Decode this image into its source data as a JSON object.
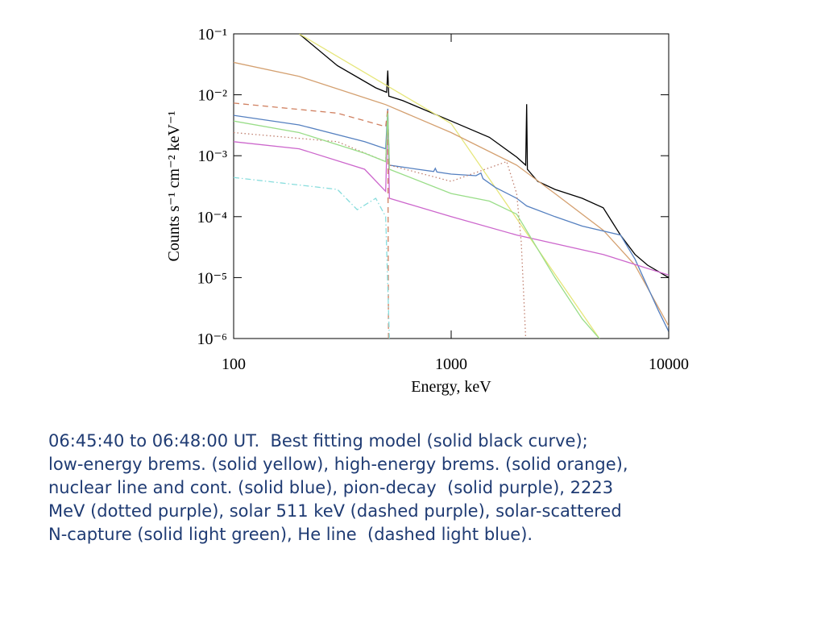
{
  "chart_data": {
    "type": "line",
    "log_x": true,
    "log_y": true,
    "xlabel": "Energy, keV",
    "ylabel": "Counts s⁻¹ cm⁻² keV⁻¹",
    "xlim": [
      100,
      10000
    ],
    "ylim": [
      1e-06,
      0.1
    ],
    "xticks": [
      100,
      1000,
      10000
    ],
    "yticks": [
      {
        "value": 1e-06,
        "label": "10⁻⁶"
      },
      {
        "value": 1e-05,
        "label": "10⁻⁵"
      },
      {
        "value": 0.0001,
        "label": "10⁻⁴"
      },
      {
        "value": 0.001,
        "label": "10⁻³"
      },
      {
        "value": 0.01,
        "label": "10⁻²"
      },
      {
        "value": 0.1,
        "label": "10⁻¹"
      }
    ],
    "series": [
      {
        "name": "Best fitting model",
        "color": "#000000",
        "style": "solid",
        "x": [
          200,
          300,
          450,
          505,
          511,
          517,
          600,
          1000,
          1500,
          2000,
          2200,
          2223,
          2240,
          2500,
          3000,
          4000,
          5000,
          6000,
          7000,
          8000,
          10000
        ],
        "values": [
          0.1,
          0.03,
          0.013,
          0.011,
          0.025,
          0.0095,
          0.008,
          0.0037,
          0.002,
          0.00095,
          0.0007,
          0.007,
          0.0006,
          0.00038,
          0.00028,
          0.0002,
          0.00014,
          5e-05,
          2.4e-05,
          1.6e-05,
          1e-05
        ]
      },
      {
        "name": "low-energy brems.",
        "color": "#e6e67a",
        "style": "solid",
        "x": [
          200,
          1000,
          4800
        ],
        "values": [
          0.1,
          0.00337,
          1e-06
        ]
      },
      {
        "name": "high-energy brems.",
        "color": "#d4a070",
        "style": "solid",
        "x": [
          100,
          200,
          500,
          1000,
          2000,
          3000,
          5000,
          7000,
          10000
        ],
        "values": [
          0.034,
          0.02,
          0.0069,
          0.0024,
          0.0007,
          0.00024,
          6e-05,
          1.6e-05,
          1.6e-06
        ]
      },
      {
        "name": "nuclear line and cont.",
        "color": "#5580c0",
        "style": "solid",
        "x": [
          100,
          200,
          400,
          500,
          511,
          520,
          700,
          830,
          845,
          860,
          1000,
          1300,
          1370,
          1400,
          1600,
          2000,
          2223,
          3000,
          4000,
          6000,
          7000,
          9000,
          10000
        ],
        "values": [
          0.0046,
          0.0032,
          0.0017,
          0.0013,
          0.0059,
          0.0007,
          0.0006,
          0.00055,
          0.00062,
          0.00054,
          0.0005,
          0.00047,
          0.00052,
          0.00042,
          0.0003,
          0.0002,
          0.00015,
          0.0001,
          7e-05,
          5e-05,
          2e-05,
          2.8e-06,
          1.3e-06
        ]
      },
      {
        "name": "pion-decay",
        "color": "#cc66cc",
        "style": "solid",
        "x": [
          100,
          200,
          400,
          500,
          511,
          520,
          1000,
          2000,
          5000,
          10000
        ],
        "values": [
          0.0017,
          0.0013,
          0.0006,
          0.00026,
          0.005,
          0.0002,
          0.0001,
          5e-05,
          2.4e-05,
          1.1e-05
        ]
      },
      {
        "name": "2223 MeV",
        "color": "#c08070",
        "style": "dotted",
        "x": [
          100,
          300,
          500,
          511,
          520,
          1000,
          1800,
          2000,
          2100,
          2200
        ],
        "values": [
          0.0024,
          0.0017,
          0.0008,
          0.005,
          0.0007,
          0.00038,
          0.0008,
          0.00024,
          3.8e-05,
          1e-06
        ]
      },
      {
        "name": "solar 511 keV",
        "color": "#d08060",
        "style": "dashed",
        "x": [
          100,
          300,
          500,
          511,
          515
        ],
        "values": [
          0.0073,
          0.005,
          0.003,
          0.0059,
          1e-06
        ]
      },
      {
        "name": "solar-scattered N-capture",
        "color": "#99dd88",
        "style": "solid",
        "x": [
          100,
          200,
          400,
          500,
          511,
          520,
          1000,
          1500,
          2000,
          3000,
          4000,
          4800
        ],
        "values": [
          0.0037,
          0.0024,
          0.0011,
          0.0008,
          0.005,
          0.0006,
          0.00024,
          0.00018,
          0.00011,
          1e-05,
          2.1e-06,
          1e-06
        ]
      },
      {
        "name": "He line",
        "color": "#88dddd",
        "style": "dashdot",
        "x": [
          100,
          300,
          370,
          450,
          500,
          520
        ],
        "values": [
          0.00044,
          0.00028,
          0.00013,
          0.0002,
          0.0001,
          1e-06
        ]
      }
    ]
  },
  "caption": [
    "06:45:40 to 06:48:00 UT.  Best fitting model (solid black curve);",
    "low-energy brems. (solid yellow), high-energy brems. (solid orange),",
    "nuclear line and cont. (solid blue), pion-decay  (solid purple), 2223",
    "MeV (dotted purple), solar 511 keV (dashed purple), solar-scattered",
    "N-capture (solid light green), He line  (dashed light blue)."
  ]
}
